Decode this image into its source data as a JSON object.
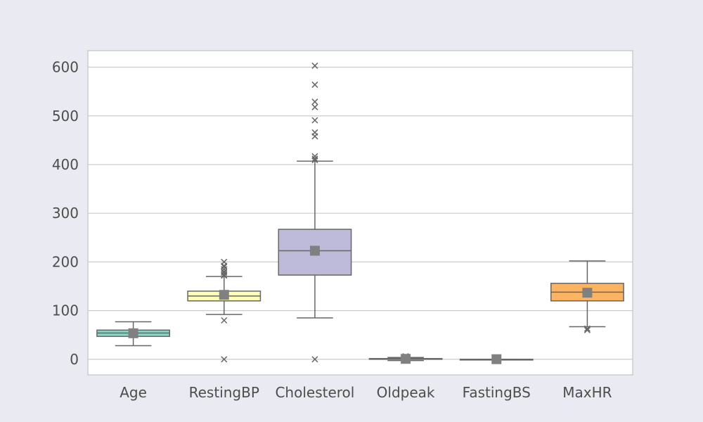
{
  "chart_data": {
    "type": "box",
    "title": "",
    "xlabel": "",
    "ylabel": "",
    "ylim": [
      -32,
      634
    ],
    "yticks": [
      0,
      100,
      200,
      300,
      400,
      500,
      600
    ],
    "grid": true,
    "categories": [
      "Age",
      "RestingBP",
      "Cholesterol",
      "Oldpeak",
      "FastingBS",
      "MaxHR"
    ],
    "boxes": [
      {
        "category": "Age",
        "color": "#8dd3c7",
        "whisker_low": 28,
        "q1": 47,
        "median": 54,
        "q3": 60,
        "whisker_high": 77,
        "mean": 53.5,
        "outliers": []
      },
      {
        "category": "RestingBP",
        "color": "#ffffb3",
        "whisker_low": 92,
        "q1": 120,
        "median": 130,
        "q3": 140,
        "whisker_high": 170,
        "mean": 132.4,
        "outliers": [
          0,
          80,
          172,
          174,
          178,
          180,
          185,
          190,
          192,
          200
        ]
      },
      {
        "category": "Cholesterol",
        "color": "#bebada",
        "whisker_low": 85,
        "q1": 173,
        "median": 223,
        "q3": 267,
        "whisker_high": 407,
        "mean": 223,
        "outliers": [
          0,
          409,
          412,
          417,
          458,
          466,
          491,
          518,
          529,
          564,
          603
        ]
      },
      {
        "category": "Oldpeak",
        "color": "#fb8072",
        "whisker_low": -2.6,
        "q1": 0,
        "median": 0.6,
        "q3": 1.5,
        "whisker_high": 3.7,
        "mean": 0.9,
        "outliers": [
          4,
          4.2,
          4.4,
          5,
          5.6,
          6.2
        ]
      },
      {
        "category": "FastingBS",
        "color": "#80b1d3",
        "whisker_low": 0,
        "q1": 0,
        "median": 0,
        "q3": 0,
        "whisker_high": 0,
        "mean": 0.23,
        "outliers": [
          1
        ]
      },
      {
        "category": "MaxHR",
        "color": "#fdb462",
        "whisker_low": 67,
        "q1": 120,
        "median": 138,
        "q3": 156,
        "whisker_high": 202,
        "mean": 136.8,
        "outliers": [
          60,
          63
        ]
      }
    ],
    "colors": {
      "background": "#eaeaf2",
      "plot_area": "#ffffff",
      "grid": "#cccccc",
      "line": "#666666",
      "mean_marker": "#808080",
      "tick_text": "#4d4d4d"
    }
  }
}
